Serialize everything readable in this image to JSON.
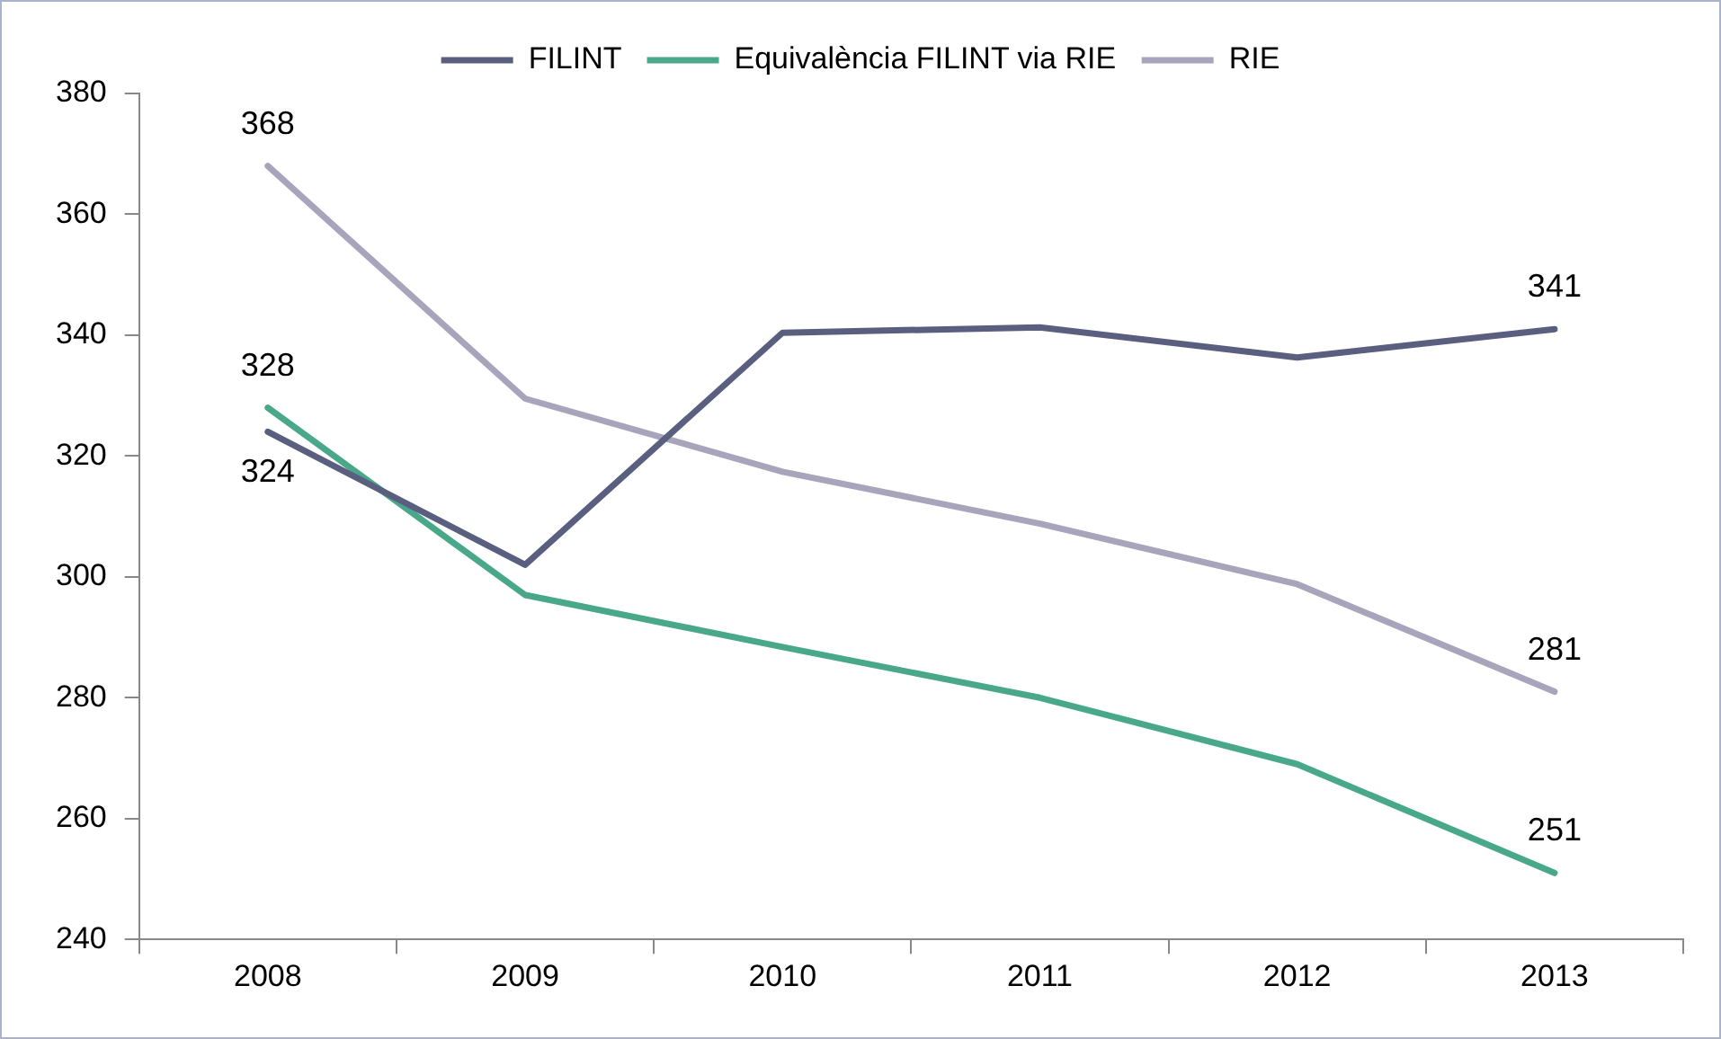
{
  "chart_data": {
    "type": "line",
    "categories": [
      "2008",
      "2009",
      "2010",
      "2011",
      "2012",
      "2013"
    ],
    "series": [
      {
        "name": "FILINT",
        "color": "#5a5f80",
        "values": [
          324,
          302,
          340.4,
          341.3,
          336.3,
          341
        ],
        "value_labels": [
          "324",
          null,
          null,
          null,
          null,
          "341"
        ]
      },
      {
        "name": "Equivalència FILINT via RIE",
        "color": "#4aa88a",
        "values": [
          328,
          297,
          288.4,
          280,
          269,
          251
        ],
        "value_labels": [
          "328",
          null,
          null,
          null,
          null,
          "251"
        ]
      },
      {
        "name": "RIE",
        "color": "#a8a4bc",
        "values": [
          368,
          329.5,
          317.4,
          308.8,
          298.8,
          281
        ],
        "value_labels": [
          "368",
          null,
          null,
          null,
          null,
          "281"
        ]
      }
    ],
    "ylim": [
      240,
      380
    ],
    "yticks": [
      240,
      260,
      280,
      300,
      320,
      340,
      360,
      380
    ],
    "grid": false,
    "legend": "top",
    "marker": "none",
    "line_style": "solid"
  }
}
